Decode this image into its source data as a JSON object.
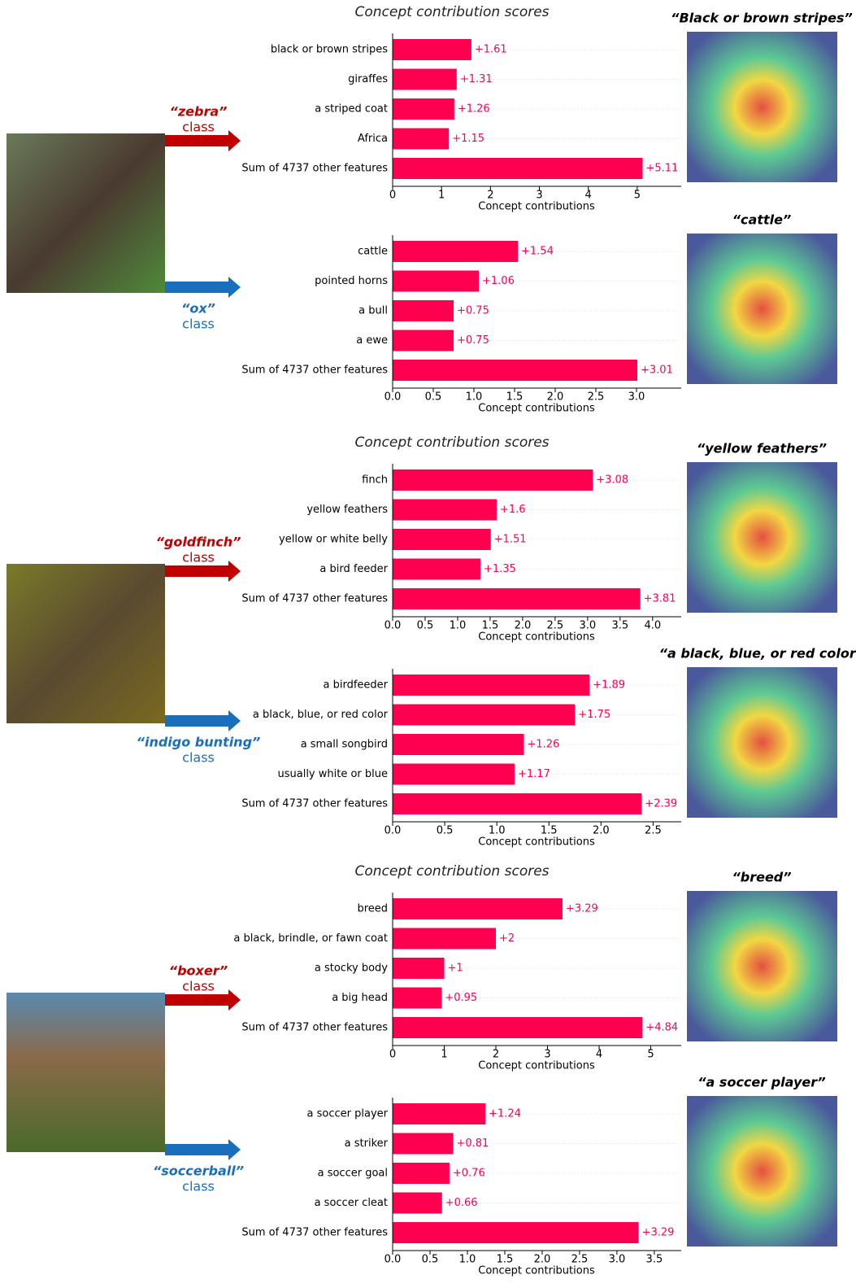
{
  "chart_data": [
    {
      "type": "bar",
      "orientation": "horizontal",
      "title": "Concept contribution scores",
      "categories": [
        "black or brown stripes",
        "giraffes",
        "a striped coat",
        "Africa",
        "Sum of 4737 other features"
      ],
      "values": [
        1.61,
        1.31,
        1.26,
        1.15,
        5.11
      ],
      "value_labels": [
        "+1.61",
        "+1.31",
        "+1.26",
        "+1.15",
        "+5.11"
      ],
      "xlabel": "Concept contributions",
      "xlim": [
        0,
        5.9
      ],
      "xticks": [
        0,
        1,
        2,
        3,
        4,
        5
      ],
      "color": "#ff0051",
      "class_label": "“zebra”",
      "class_word": "class",
      "class_color": "#c00000",
      "heatmap_caption": "“Black or brown stripes”"
    },
    {
      "type": "bar",
      "orientation": "horizontal",
      "categories": [
        "cattle",
        "pointed horns",
        "a bull",
        "a ewe",
        "Sum of 4737 other features"
      ],
      "values": [
        1.54,
        1.06,
        0.75,
        0.75,
        3.01
      ],
      "value_labels": [
        "+1.54",
        "+1.06",
        "+0.75",
        "+0.75",
        "+3.01"
      ],
      "xlabel": "Concept contributions",
      "xlim": [
        0,
        3.55
      ],
      "xticks": [
        {
          "value": 0,
          "label": "0.0"
        },
        0.5,
        {
          "value": 1,
          "label": "1.0"
        },
        1.5,
        {
          "value": 2,
          "label": "2.0"
        },
        2.5,
        {
          "value": 3,
          "label": "3.0"
        }
      ],
      "color": "#ff0051",
      "class_label": "“ox”",
      "class_word": "class",
      "class_color": "#1a6fbd",
      "heatmap_caption": "“cattle”"
    },
    {
      "type": "bar",
      "orientation": "horizontal",
      "title": "Concept contribution scores",
      "categories": [
        "finch",
        "yellow feathers",
        "yellow or white belly",
        "a bird feeder",
        "Sum of 4737 other features"
      ],
      "values": [
        3.08,
        1.6,
        1.51,
        1.35,
        3.81
      ],
      "value_labels": [
        "+3.08",
        "+1.6",
        "+1.51",
        "+1.35",
        "+3.81"
      ],
      "xlabel": "Concept contributions",
      "xlim": [
        0,
        4.44
      ],
      "xticks": [
        {
          "value": 0,
          "label": "0.0"
        },
        0.5,
        {
          "value": 1,
          "label": "1.0"
        },
        1.5,
        {
          "value": 2,
          "label": "2.0"
        },
        2.5,
        {
          "value": 3,
          "label": "3.0"
        },
        3.5,
        {
          "value": 4,
          "label": "4.0"
        }
      ],
      "color": "#ff0051",
      "class_label": "“goldfinch”",
      "class_word": "class",
      "class_color": "#c00000",
      "heatmap_caption": "“yellow feathers”"
    },
    {
      "type": "bar",
      "orientation": "horizontal",
      "categories": [
        "a birdfeeder",
        "a black, blue, or red color",
        "a small songbird",
        "usually white or blue",
        "Sum of 4737 other features"
      ],
      "values": [
        1.89,
        1.75,
        1.26,
        1.17,
        2.39
      ],
      "value_labels": [
        "+1.89",
        "+1.75",
        "+1.26",
        "+1.17",
        "+2.39"
      ],
      "xlabel": "Concept contributions",
      "xlim": [
        0,
        2.77
      ],
      "xticks": [
        {
          "value": 0,
          "label": "0.0"
        },
        0.5,
        {
          "value": 1,
          "label": "1.0"
        },
        1.5,
        {
          "value": 2,
          "label": "2.0"
        },
        2.5
      ],
      "color": "#ff0051",
      "class_label": "“indigo bunting”",
      "class_word": "class",
      "class_color": "#1a6fbd",
      "heatmap_caption": "“a black, blue, or red color”"
    },
    {
      "type": "bar",
      "orientation": "horizontal",
      "title": "Concept contribution scores",
      "categories": [
        "breed",
        "a black, brindle, or fawn coat",
        "a stocky body",
        "a big head",
        "Sum of 4737 other features"
      ],
      "values": [
        3.29,
        2,
        1,
        0.95,
        4.84
      ],
      "value_labels": [
        "+3.29",
        "+2",
        "+1",
        "+0.95",
        "+4.84"
      ],
      "xlabel": "Concept contributions",
      "xlim": [
        0,
        5.59
      ],
      "xticks": [
        0,
        1,
        2,
        3,
        4,
        5
      ],
      "color": "#ff0051",
      "class_label": "“boxer”",
      "class_word": "class",
      "class_color": "#c00000",
      "heatmap_caption": "“breed”"
    },
    {
      "type": "bar",
      "orientation": "horizontal",
      "categories": [
        "a soccer player",
        "a striker",
        "a soccer goal",
        "a soccer cleat",
        "Sum of 4737 other features"
      ],
      "values": [
        1.24,
        0.81,
        0.76,
        0.66,
        3.29
      ],
      "value_labels": [
        "+1.24",
        "+0.81",
        "+0.76",
        "+0.66",
        "+3.29"
      ],
      "xlabel": "Concept contributions",
      "xlim": [
        0,
        3.86
      ],
      "xticks": [
        {
          "value": 0,
          "label": "0.0"
        },
        0.5,
        {
          "value": 1,
          "label": "1.0"
        },
        1.5,
        {
          "value": 2,
          "label": "2.0"
        },
        2.5,
        {
          "value": 3,
          "label": "3.0"
        },
        3.5
      ],
      "color": "#ff0051",
      "class_label": "“soccerball”",
      "class_word": "class",
      "class_color": "#1a6fbd",
      "heatmap_caption": "“a soccer player”"
    }
  ]
}
